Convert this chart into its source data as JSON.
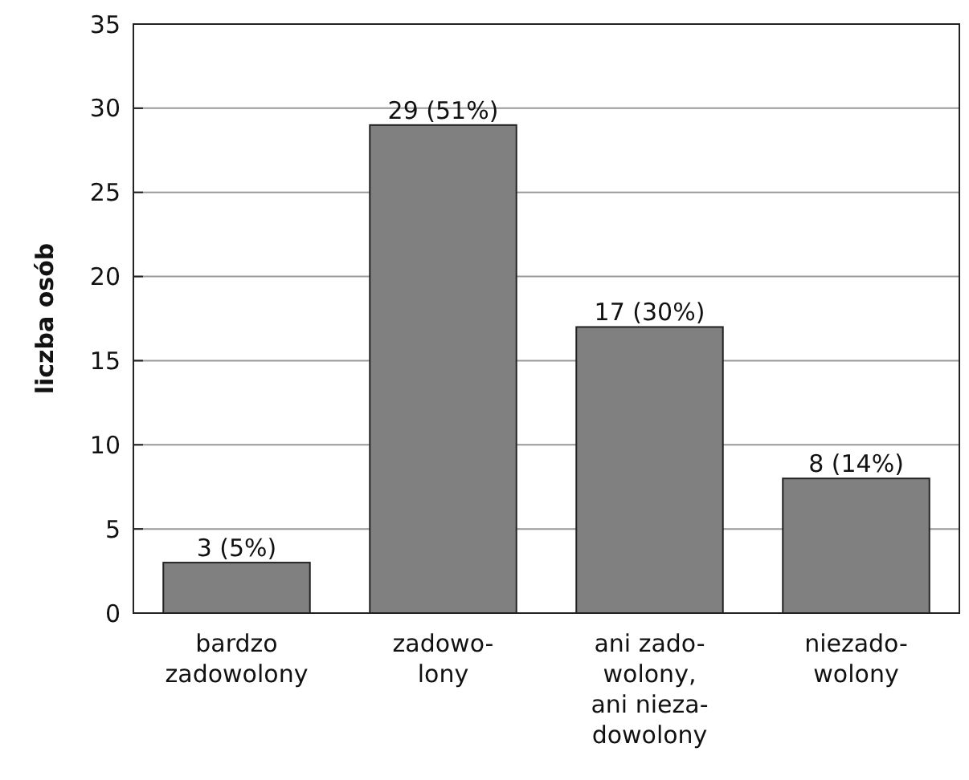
{
  "chart_data": {
    "type": "bar",
    "ylabel": "liczba osób",
    "categories": [
      "bardzo\nzadowolony",
      "zadowo-\nlony",
      "ani zado-\nwolony,\nani nieza-\ndowolony",
      "niezado-\nwolony"
    ],
    "values": [
      3,
      29,
      17,
      8
    ],
    "color": "#808080",
    "value_labels": [
      "3 (5%)",
      "29 (51%)",
      "17 (30%)",
      "8 (14%)"
    ],
    "ylim": [
      0,
      35
    ],
    "yticks": [
      0,
      5,
      10,
      15,
      20,
      25,
      30,
      35
    ],
    "grid": "y"
  }
}
